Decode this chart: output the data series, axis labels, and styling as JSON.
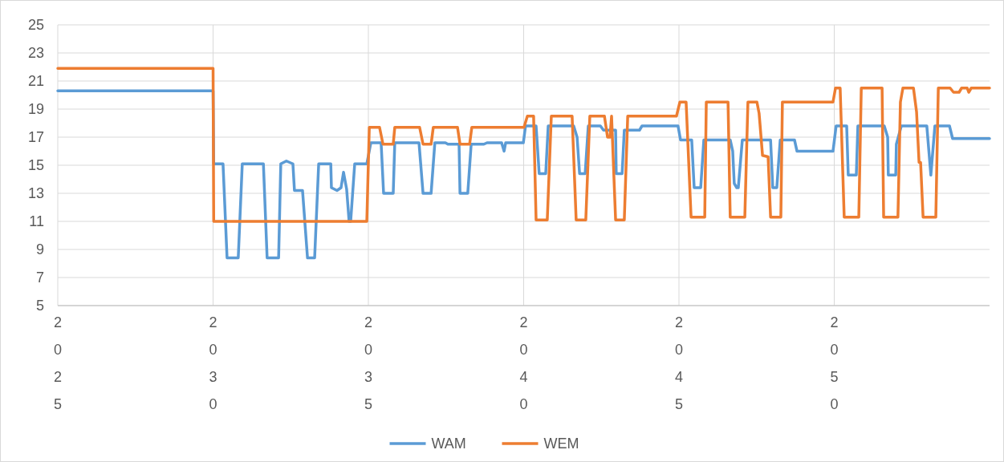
{
  "chart_data": {
    "type": "line",
    "xlim": [
      2025,
      2055
    ],
    "xticks": [
      2025,
      2030,
      2035,
      2040,
      2045,
      2050
    ],
    "ylim": [
      5,
      25
    ],
    "yticks": [
      5,
      7,
      9,
      11,
      13,
      15,
      17,
      19,
      21,
      23,
      25
    ],
    "grid": true,
    "legend": "bottom",
    "marker": "none",
    "line_style": "solid",
    "series": [
      {
        "name": "WAM",
        "color": "#5b9bd5",
        "x": [
          2025,
          2030.0,
          2030.02,
          2030.32,
          2030.45,
          2030.81,
          2030.94,
          2031.62,
          2031.74,
          2032.11,
          2032.18,
          2032.36,
          2032.57,
          2032.62,
          2032.88,
          2033.04,
          2033.27,
          2033.4,
          2033.79,
          2033.81,
          2033.99,
          2034.12,
          2034.2,
          2034.3,
          2034.38,
          2034.43,
          2034.56,
          2034.95,
          2035.08,
          2035.41,
          2035.49,
          2035.8,
          2035.85,
          2036.63,
          2036.76,
          2037.02,
          2037.14,
          2037.48,
          2037.56,
          2037.92,
          2037.95,
          2038.2,
          2038.31,
          2038.72,
          2038.82,
          2039.29,
          2039.37,
          2039.42,
          2039.99,
          2040.06,
          2040.4,
          2040.5,
          2040.71,
          2040.79,
          2041.61,
          2041.72,
          2041.8,
          2041.98,
          2042.08,
          2042.47,
          2042.57,
          2042.96,
          2042.98,
          2043.17,
          2043.24,
          2043.73,
          2043.81,
          2044.97,
          2045.05,
          2045.41,
          2045.49,
          2045.7,
          2045.8,
          2046.65,
          2046.73,
          2046.78,
          2046.86,
          2046.91,
          2047.04,
          2047.95,
          2048.02,
          2048.15,
          2048.26,
          2048.72,
          2048.8,
          2049.96,
          2050.06,
          2050.4,
          2050.45,
          2050.71,
          2050.76,
          2051.61,
          2051.72,
          2051.74,
          2051.98,
          2052.0,
          2052.16,
          2052.98,
          2053.11,
          2053.24,
          2053.71,
          2053.81,
          2055.0
        ],
        "values": [
          20.3,
          20.3,
          15.1,
          15.1,
          8.4,
          8.4,
          15.1,
          15.1,
          8.4,
          8.4,
          15.1,
          15.3,
          15.1,
          13.2,
          13.2,
          8.4,
          8.4,
          15.1,
          15.1,
          13.4,
          13.2,
          13.4,
          14.5,
          13.3,
          11.0,
          11.0,
          15.1,
          15.1,
          16.6,
          16.6,
          13.0,
          13.0,
          16.6,
          16.6,
          13.0,
          13.0,
          16.6,
          16.6,
          16.5,
          16.5,
          13.0,
          13.0,
          16.5,
          16.5,
          16.6,
          16.6,
          16.0,
          16.6,
          16.6,
          17.8,
          17.8,
          14.4,
          14.4,
          17.8,
          17.8,
          17.0,
          14.4,
          14.4,
          17.8,
          17.8,
          17.5,
          17.5,
          14.4,
          14.4,
          17.5,
          17.5,
          17.8,
          17.8,
          16.8,
          16.8,
          13.4,
          13.4,
          16.8,
          16.8,
          16.0,
          13.7,
          13.4,
          13.4,
          16.8,
          16.8,
          13.4,
          13.4,
          16.8,
          16.8,
          16.0,
          16.0,
          17.8,
          17.8,
          14.3,
          14.3,
          17.8,
          17.8,
          17.0,
          14.3,
          14.3,
          16.5,
          17.8,
          17.8,
          14.3,
          17.8,
          17.8,
          16.9,
          16.9
        ]
      },
      {
        "name": "WEM",
        "color": "#ed7d31",
        "x": [
          2025,
          2030.0,
          2030.02,
          2034.95,
          2035.03,
          2035.36,
          2035.47,
          2035.8,
          2035.85,
          2036.65,
          2036.76,
          2037.02,
          2037.09,
          2037.87,
          2037.95,
          2038.26,
          2038.33,
          2040.01,
          2040.12,
          2040.32,
          2040.4,
          2040.76,
          2040.89,
          2041.56,
          2041.69,
          2042.0,
          2042.13,
          2042.6,
          2042.7,
          2042.78,
          2042.83,
          2042.96,
          2043.24,
          2043.35,
          2044.92,
          2045.03,
          2045.23,
          2045.39,
          2045.83,
          2045.88,
          2046.58,
          2046.65,
          2047.12,
          2047.22,
          2047.51,
          2047.58,
          2047.61,
          2047.69,
          2047.87,
          2047.95,
          2048.28,
          2048.33,
          2049.96,
          2050.04,
          2050.19,
          2050.32,
          2050.79,
          2050.87,
          2051.54,
          2051.59,
          2052.05,
          2052.13,
          2052.21,
          2052.55,
          2052.65,
          2052.73,
          2052.78,
          2052.86,
          2053.27,
          2053.35,
          2053.73,
          2053.84,
          2054.02,
          2054.1,
          2054.28,
          2054.33,
          2054.41,
          2055.0
        ],
        "values": [
          21.9,
          21.9,
          11.0,
          11.0,
          17.7,
          17.7,
          16.5,
          16.5,
          17.7,
          17.7,
          16.5,
          16.5,
          17.7,
          17.7,
          16.5,
          16.5,
          17.7,
          17.7,
          18.5,
          18.5,
          11.1,
          11.1,
          18.5,
          18.5,
          11.1,
          11.1,
          18.5,
          18.5,
          17.0,
          17.0,
          18.5,
          11.1,
          11.1,
          18.5,
          18.5,
          19.5,
          19.5,
          11.3,
          11.3,
          19.5,
          19.5,
          11.3,
          11.3,
          19.5,
          19.5,
          18.7,
          17.9,
          15.7,
          15.6,
          11.3,
          11.3,
          19.5,
          19.5,
          20.5,
          20.5,
          11.3,
          11.3,
          20.5,
          20.5,
          11.3,
          11.3,
          19.5,
          20.5,
          20.5,
          18.8,
          15.2,
          15.2,
          11.3,
          11.3,
          20.5,
          20.5,
          20.2,
          20.2,
          20.5,
          20.5,
          20.2,
          20.5,
          20.5
        ]
      }
    ]
  }
}
